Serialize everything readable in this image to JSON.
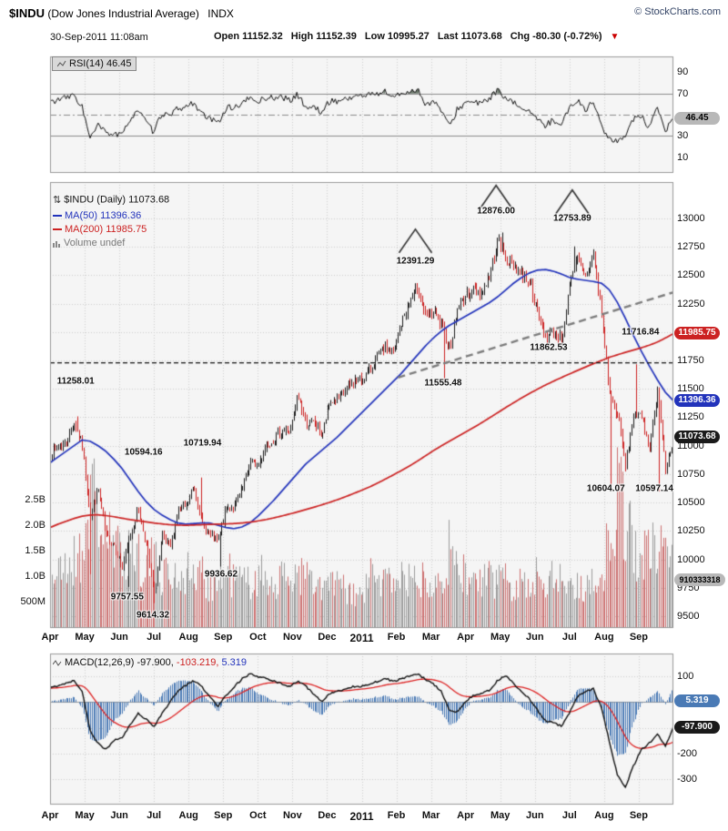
{
  "header": {
    "symbol": "$INDU",
    "symbol_desc": "(Dow Jones Industrial Average)",
    "exchange": "INDX",
    "copyright": "© StockCharts.com",
    "datetime": "30-Sep-2011 11:08am",
    "open_label": "Open",
    "open": "11152.32",
    "high_label": "High",
    "high": "11152.39",
    "low_label": "Low",
    "low": "10995.27",
    "last_label": "Last",
    "last": "11073.68",
    "chg_label": "Chg",
    "chg": "-80.30 (-0.72%)"
  },
  "icons": {
    "updown_arrows": "⇅",
    "triangle_down": "▼"
  },
  "rsi_panel": {
    "legend": "RSI(14) 46.45",
    "badge": "46.45",
    "ticks": [
      90,
      70,
      30,
      10
    ]
  },
  "main_panel": {
    "legend_symbol": "$INDU (Daily) 11073.68",
    "legend_ma50": "MA(50) 11396.36",
    "legend_ma200": "MA(200) 11985.75",
    "legend_volume": "Volume undef",
    "badge_ma200": "11985.75",
    "badge_ma50": "11396.36",
    "badge_last": "11073.68",
    "badge_volume": "910333318",
    "price_ticks": [
      13000,
      12750,
      12500,
      12250,
      12000,
      11750,
      11500,
      11250,
      11000,
      10750,
      10500,
      10250,
      10000,
      9750,
      9500
    ],
    "volume_ticks": [
      {
        "label": "2.5B",
        "v": 2.5
      },
      {
        "label": "2.0B",
        "v": 2.0
      },
      {
        "label": "1.5B",
        "v": 1.5
      },
      {
        "label": "1.0B",
        "v": 1.0
      },
      {
        "label": "500M",
        "v": 0.5
      }
    ]
  },
  "macd_panel": {
    "legend_name": "MACD(12,26,9)",
    "legend_values": [
      "-97.900,",
      "-103.219,",
      "5.319"
    ],
    "badge_hist": "5.319",
    "badge_macd": "-97.900",
    "ticks": [
      100,
      -200,
      -300
    ]
  },
  "x_axis": {
    "months": [
      "Apr",
      "May",
      "Jun",
      "Jul",
      "Aug",
      "Sep",
      "Oct",
      "Nov",
      "Dec",
      "2011",
      "Feb",
      "Mar",
      "Apr",
      "May",
      "Jun",
      "Jul",
      "Aug",
      "Sep"
    ],
    "bold_index": 9
  },
  "chart_data": [
    {
      "name": "rsi",
      "type": "line",
      "title": "RSI(14)",
      "ylim": [
        0,
        100
      ],
      "levels": {
        "overbought": 70,
        "oversold": 30,
        "mid": 50
      },
      "last": 46.45,
      "series": [
        {
          "name": "RSI(14) weekly anchors Apr-2010..Sep-2011",
          "values": [
            62,
            64,
            66,
            68,
            58,
            27,
            40,
            33,
            32,
            30,
            46,
            55,
            43,
            33,
            52,
            48,
            56,
            57,
            62,
            50,
            46,
            42,
            56,
            57,
            60,
            66,
            62,
            66,
            66,
            67,
            63,
            69,
            57,
            57,
            52,
            63,
            63,
            65,
            67,
            68,
            69,
            70,
            72,
            66,
            70,
            72,
            74,
            60,
            62,
            54,
            38,
            56,
            61,
            62,
            60,
            66,
            73,
            64,
            61,
            57,
            54,
            44,
            40,
            45,
            42,
            56,
            64,
            55,
            62,
            40,
            26,
            24,
            32,
            46,
            48,
            37,
            56,
            34,
            46.45
          ]
        }
      ]
    },
    {
      "name": "price",
      "type": "line",
      "title": "$INDU Daily with MA(50), MA(200) and volume",
      "ylim": [
        9396,
        13320
      ],
      "x_range": "Apr-2010 to Sep-2011, weekly anchor closes",
      "last": {
        "close": 11073.68,
        "ma50": 11396.36,
        "ma200": 11985.75
      },
      "series": [
        {
          "name": "$INDU weekly close",
          "values": [
            10927,
            10997,
            11019,
            11204,
            11009,
            10380,
            10620,
            10193,
            10137,
            9932,
            10211,
            10451,
            10144,
            9686,
            10198,
            10098,
            10425,
            10466,
            10654,
            10303,
            10214,
            10151,
            10448,
            10463,
            10608,
            10860,
            10830,
            11006,
            11063,
            11133,
            11118,
            11444,
            11193,
            11204,
            11092,
            11382,
            11410,
            11492,
            11573,
            11578,
            11675,
            11787,
            11872,
            11824,
            12092,
            12273,
            12391,
            12130,
            12170,
            12044,
            11858,
            12221,
            12320,
            12380,
            12342,
            12506,
            12810,
            12639,
            12596,
            12512,
            12442,
            12151,
            11952,
            12004,
            11935,
            12414,
            12657,
            12480,
            12681,
            12143,
            11445,
            11269,
            10818,
            11284,
            11240,
            10992,
            11509,
            10771,
            11074
          ]
        },
        {
          "name": "MA(50)",
          "values": [
            10850,
            10900,
            10950,
            11000,
            11050,
            11040,
            11000,
            10950,
            10880,
            10800,
            10700,
            10600,
            10510,
            10440,
            10390,
            10350,
            10320,
            10310,
            10315,
            10320,
            10320,
            10300,
            10280,
            10270,
            10285,
            10320,
            10380,
            10450,
            10520,
            10600,
            10680,
            10760,
            10840,
            10900,
            10960,
            11020,
            11080,
            11150,
            11220,
            11290,
            11360,
            11430,
            11500,
            11570,
            11640,
            11720,
            11800,
            11880,
            11950,
            12010,
            12060,
            12100,
            12140,
            12180,
            12220,
            12260,
            12310,
            12370,
            12430,
            12480,
            12520,
            12545,
            12550,
            12535,
            12510,
            12480,
            12465,
            12455,
            12445,
            12430,
            12370,
            12260,
            12120,
            11970,
            11830,
            11700,
            11580,
            11470,
            11396
          ]
        },
        {
          "name": "MA(200)",
          "values": [
            10280,
            10310,
            10335,
            10360,
            10380,
            10390,
            10392,
            10385,
            10375,
            10362,
            10350,
            10340,
            10330,
            10320,
            10312,
            10305,
            10302,
            10300,
            10302,
            10305,
            10308,
            10310,
            10312,
            10315,
            10320,
            10328,
            10338,
            10350,
            10365,
            10382,
            10400,
            10418,
            10438,
            10458,
            10480,
            10502,
            10526,
            10552,
            10580,
            10608,
            10638,
            10672,
            10708,
            10745,
            10783,
            10823,
            10866,
            10912,
            10958,
            11000,
            11040,
            11080,
            11120,
            11160,
            11202,
            11246,
            11290,
            11335,
            11378,
            11420,
            11460,
            11498,
            11534,
            11568,
            11600,
            11632,
            11662,
            11692,
            11722,
            11750,
            11778,
            11800,
            11822,
            11842,
            11862,
            11885,
            11912,
            11948,
            11986
          ]
        },
        {
          "name": "Volume (avg daily, billions)",
          "values": [
            1.1,
            1.0,
            1.2,
            1.3,
            1.5,
            2.6,
            2.2,
            1.8,
            1.4,
            1.5,
            1.6,
            1.4,
            1.3,
            1.2,
            1.1,
            1.0,
            1.0,
            1.1,
            1.0,
            1.0,
            0.9,
            0.9,
            1.1,
            1.0,
            0.9,
            0.9,
            1.0,
            1.0,
            0.9,
            0.9,
            1.0,
            1.1,
            1.0,
            0.8,
            0.7,
            0.9,
            0.8,
            0.7,
            0.6,
            0.6,
            1.0,
            0.9,
            0.9,
            1.0,
            1.0,
            0.9,
            0.9,
            1.0,
            1.1,
            1.0,
            1.5,
            1.1,
            1.0,
            0.9,
            0.9,
            0.9,
            1.0,
            1.0,
            0.9,
            0.9,
            0.8,
            1.0,
            1.0,
            1.1,
            0.9,
            0.8,
            0.8,
            0.8,
            0.9,
            1.0,
            1.8,
            2.6,
            2.2,
            1.6,
            1.3,
            1.4,
            1.5,
            1.7,
            1.3
          ]
        }
      ],
      "high_spikes": [
        {
          "m": 0.8,
          "p": 11258.01
        },
        {
          "m": 4.35,
          "p": 10719.94
        },
        {
          "m": 10.62,
          "p": 12391.29
        },
        {
          "m": 13.05,
          "p": 12876.0
        },
        {
          "m": 15.15,
          "p": 12753.89
        },
        {
          "m": 16.95,
          "p": 11716.84
        }
      ],
      "low_spikes": [
        {
          "m": 1.17,
          "p": 9869.62
        },
        {
          "m": 2.25,
          "p": 9757.55
        },
        {
          "m": 3.0,
          "p": 9614.32
        },
        {
          "m": 4.92,
          "p": 9936.62
        },
        {
          "m": 11.4,
          "p": 11555.48
        },
        {
          "m": 14.35,
          "p": 11862.53
        },
        {
          "m": 16.2,
          "p": 10604.07
        },
        {
          "m": 17.6,
          "p": 10597.14
        }
      ],
      "overlays": {
        "dashed_hline_price": 11730,
        "trendline": {
          "m1": 10.05,
          "p1": 11600,
          "m2": 18.0,
          "p2": 12350
        }
      },
      "peak_markers": [
        {
          "m": 10.55,
          "p": 12905
        },
        {
          "m": 12.88,
          "p": 13290
        },
        {
          "m": 15.08,
          "p": 13250
        }
      ],
      "annotations": [
        {
          "text": "11258.01",
          "m": 0.74,
          "p": 11570
        },
        {
          "text": "10594.16",
          "m": 2.7,
          "p": 10940
        },
        {
          "text": "10719.94",
          "m": 4.4,
          "p": 11020
        },
        {
          "text": "9936.62",
          "m": 4.94,
          "p": 9870
        },
        {
          "text": "9757.55",
          "m": 2.23,
          "p": 9670
        },
        {
          "text": "9614.32",
          "m": 2.97,
          "p": 9510
        },
        {
          "text": "12391.29",
          "m": 10.55,
          "p": 12620
        },
        {
          "text": "12876.00",
          "m": 12.88,
          "p": 13060
        },
        {
          "text": "12753.89",
          "m": 15.08,
          "p": 13000
        },
        {
          "text": "11555.48",
          "m": 11.35,
          "p": 11550
        },
        {
          "text": "11862.53",
          "m": 14.4,
          "p": 11865
        },
        {
          "text": "11716.84",
          "m": 17.05,
          "p": 12000
        },
        {
          "text": "10604.07",
          "m": 16.05,
          "p": 10620
        },
        {
          "text": "10597.14",
          "m": 17.45,
          "p": 10620
        }
      ]
    },
    {
      "name": "macd",
      "type": "line",
      "title": "MACD(12,26,9)",
      "ylim": [
        -400,
        190
      ],
      "last": {
        "macd": -97.9,
        "signal": -103.219,
        "hist": 5.319
      },
      "series": [
        {
          "name": "MACD weekly anchors",
          "values": [
            55,
            65,
            75,
            85,
            45,
            -110,
            -160,
            -185,
            -150,
            -140,
            -90,
            -45,
            -65,
            -95,
            -45,
            0,
            45,
            65,
            85,
            60,
            20,
            -15,
            25,
            60,
            90,
            110,
            100,
            92,
            82,
            72,
            62,
            82,
            62,
            32,
            2,
            32,
            42,
            52,
            62,
            62,
            72,
            82,
            92,
            80,
            92,
            102,
            112,
            88,
            70,
            40,
            -35,
            -40,
            5,
            25,
            35,
            45,
            85,
            105,
            72,
            42,
            12,
            -32,
            -72,
            -82,
            -92,
            -42,
            22,
            42,
            52,
            -22,
            -155,
            -285,
            -330,
            -250,
            -185,
            -160,
            -125,
            -170,
            -97.9
          ]
        }
      ]
    }
  ]
}
